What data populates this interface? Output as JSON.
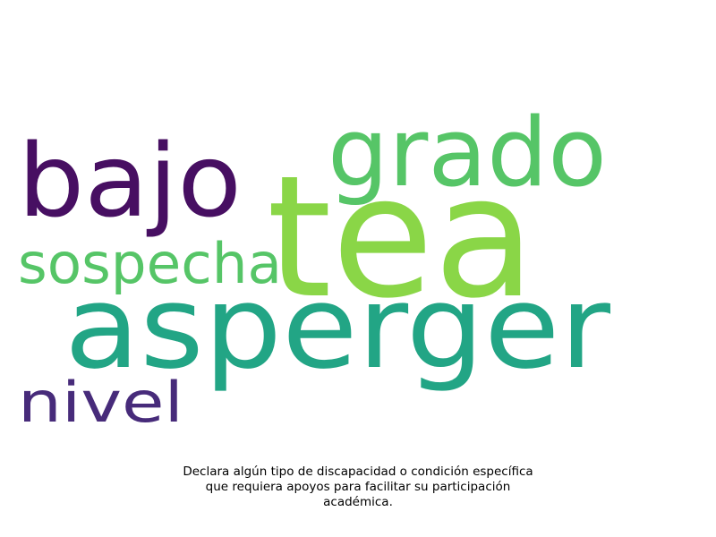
{
  "words": [
    {
      "id": "tea",
      "text": "tea",
      "color": "#8ad647"
    },
    {
      "id": "asperger",
      "text": "asperger",
      "color": "#22a585"
    },
    {
      "id": "bajo",
      "text": "bajo",
      "color": "#470f62"
    },
    {
      "id": "grado",
      "text": "grado",
      "color": "#56c567"
    },
    {
      "id": "sospecha",
      "text": "sospecha",
      "color": "#56c567"
    },
    {
      "id": "nivel",
      "text": "nivel",
      "color": "#472b7a"
    }
  ],
  "caption": {
    "lines": [
      "Declara algún tipo de discapacidad o condición específica",
      "que requiera apoyos para facilitar su participación",
      "académica."
    ]
  }
}
